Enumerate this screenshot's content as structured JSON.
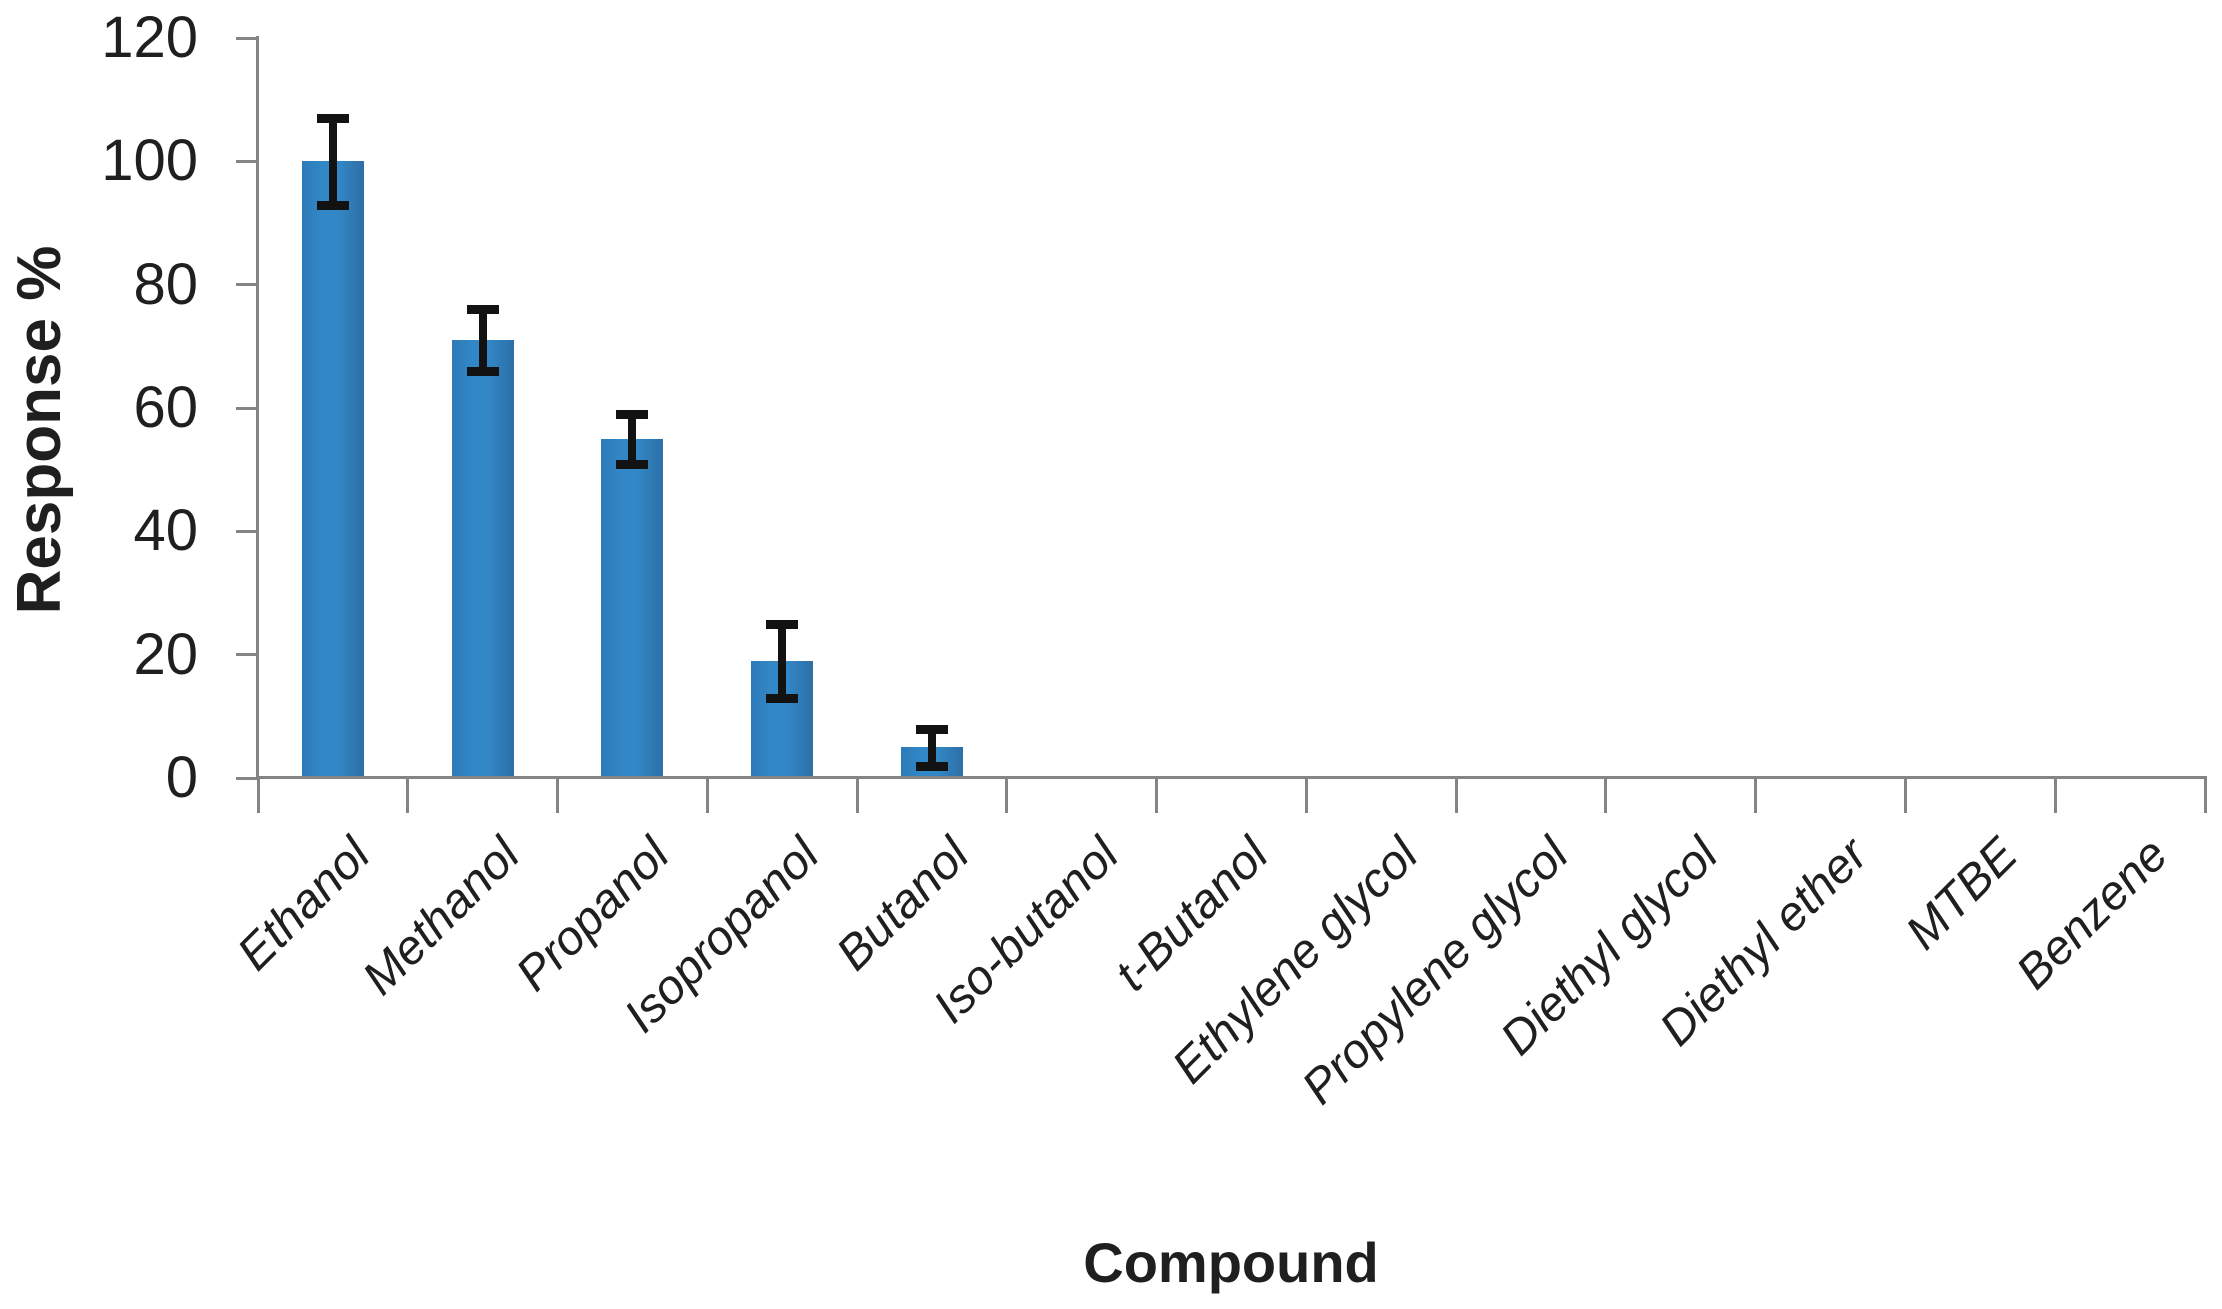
{
  "chart_data": {
    "type": "bar",
    "title": "",
    "xlabel": "Compound",
    "ylabel": "Response %",
    "categories": [
      "Ethanol",
      "Methanol",
      "Propanol",
      "Isopropanol",
      "Butanol",
      "Iso-butanol",
      "t-Butanol",
      "Ethylene glycol",
      "Propylene glycol",
      "Diethyl glycol",
      "Diethyl ether",
      "MTBE",
      "Benzene"
    ],
    "values": [
      100,
      71,
      55,
      19,
      5,
      0,
      0,
      0,
      0,
      0,
      0,
      0,
      0
    ],
    "error_margins": [
      7,
      5,
      4,
      6,
      3,
      0,
      0,
      0,
      0,
      0,
      0,
      0,
      0
    ],
    "ylim": [
      0,
      120
    ],
    "yticks": [
      0,
      20,
      40,
      60,
      80,
      100,
      120
    ],
    "grid": false,
    "legend": false,
    "bar_gradient": [
      "#2d7ab8",
      "#3287c6",
      "#2d6fa6"
    ],
    "error_bar_color": "#121212",
    "axis_color": "#848484",
    "text_color": "#1f1f1f"
  }
}
